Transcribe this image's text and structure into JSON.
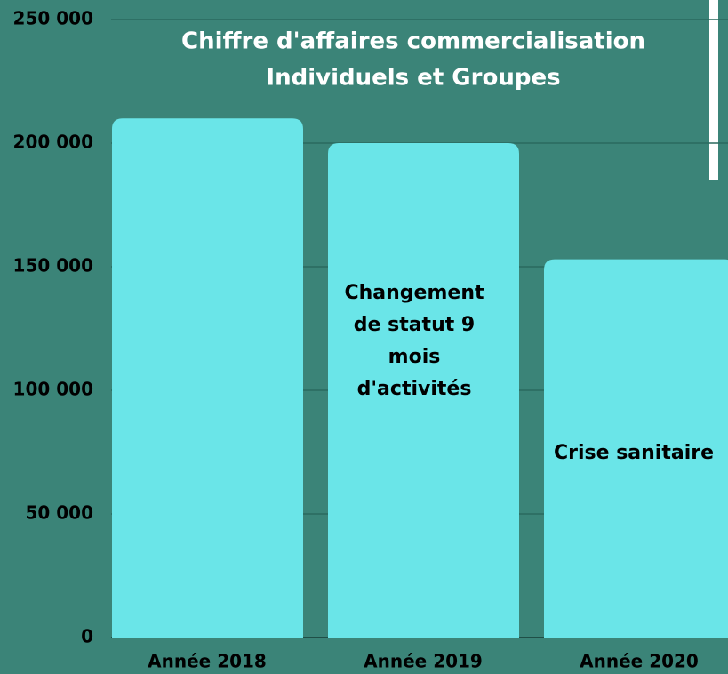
{
  "chart_data": {
    "type": "bar",
    "title": [
      "Chiffre d'affaires commercialisation",
      "Individuels et Groupes"
    ],
    "categories": [
      "Année 2018",
      "Année 2019",
      "Année 2020"
    ],
    "values": [
      210000,
      200000,
      153000
    ],
    "color": "#6ae5e8",
    "ylim": [
      0,
      250000
    ],
    "yticks": [
      0,
      {
        "value": 50000,
        "label": "50 000"
      },
      {
        "value": 100000,
        "label": "100 000"
      },
      {
        "value": 150000,
        "label": "150 000"
      },
      {
        "value": 200000,
        "label": "200 000"
      },
      {
        "value": 250000,
        "label": "250 000"
      }
    ],
    "grid": true,
    "annotations": [
      [
        "Changement",
        "de statut 9",
        "mois",
        "d'activités"
      ],
      [
        "Crise sanitaire"
      ]
    ]
  }
}
